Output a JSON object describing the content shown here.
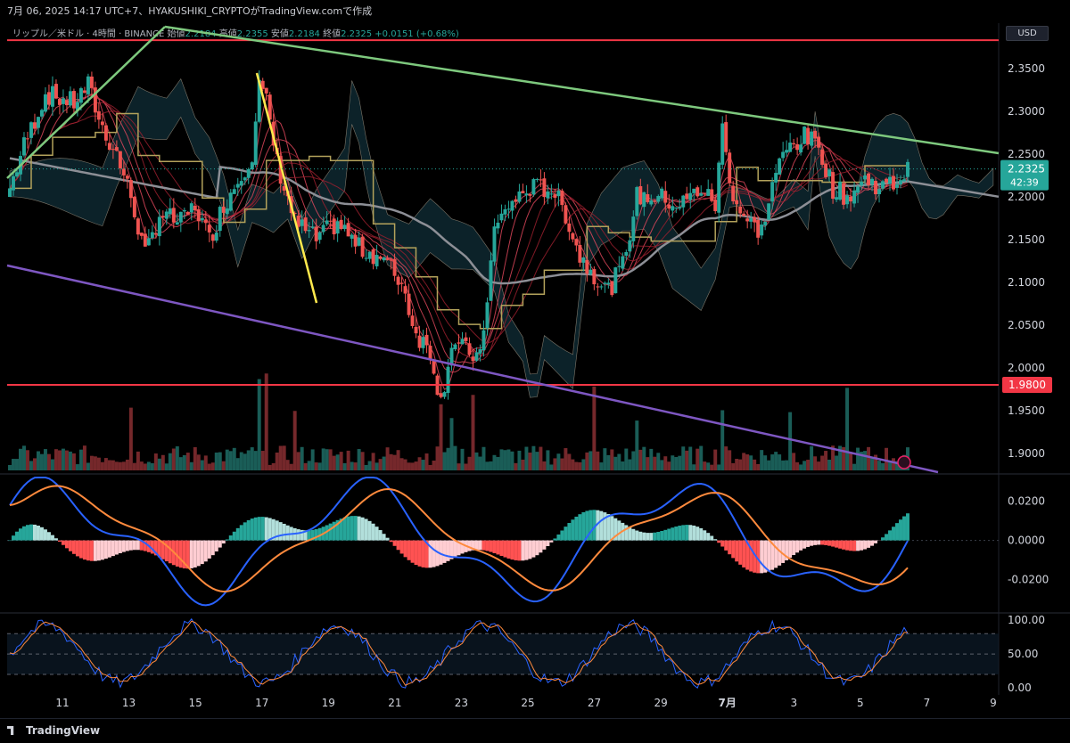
{
  "header": {
    "caption": "7月 06, 2025 14:17 UTC+7、HYAKUSHIKI_CRYPTOがTradingView.comで作成"
  },
  "legend": {
    "symbol": "リップル／米ドル · 4時間 · BINANCE",
    "open_label": "始値",
    "open": "2.2184",
    "high_label": "高値",
    "high": "2.2355",
    "low_label": "安値",
    "low": "2.2184",
    "close_label": "終値",
    "close": "2.2325",
    "change": "+0.0151 (+0.68%)"
  },
  "currency_button": "USD",
  "footer": {
    "brand": "TradingView"
  },
  "colors": {
    "up": "#26a69a",
    "down": "#ef5350",
    "cloud": "#0f2a33",
    "hline": "#f23645",
    "trend_green": "#7ec97e",
    "trend_purple": "#7e57c2",
    "trend_yellow": "#ffe94d",
    "macd": "#2962ff",
    "signal": "#ff8a3d"
  },
  "chart_data": [
    {
      "type": "candlestick",
      "pane": "price",
      "yaxis": {
        "ticks": [
          2.35,
          2.3,
          2.25,
          2.2,
          2.15,
          2.1,
          2.05,
          2.0,
          1.95,
          1.9
        ],
        "tick_labels": [
          "2.3500",
          "2.3000",
          "2.2500",
          "2.2000",
          "2.1500",
          "2.1000",
          "2.0500",
          "2.0000",
          "1.9500",
          "1.9000"
        ],
        "ylim": [
          1.88,
          2.38
        ]
      },
      "xaxis": {
        "tick_labels": [
          "11",
          "13",
          "15",
          "17",
          "19",
          "21",
          "23",
          "25",
          "27",
          "29",
          "7月",
          "3",
          "5",
          "7",
          "9"
        ]
      },
      "last_price": {
        "value": 2.2325,
        "label": "2.2325",
        "countdown": "42:39"
      },
      "horizontal_lines": [
        {
          "value": 2.383,
          "label": ""
        },
        {
          "value": 1.98,
          "label": "1.9800"
        }
      ],
      "indicators": [
        "ichimoku cloud",
        "moving average ribbon",
        "volume",
        "trendlines"
      ]
    },
    {
      "type": "macd",
      "pane": "macd",
      "yaxis": {
        "ticks": [
          0.02,
          0,
          -0.02
        ],
        "tick_labels": [
          "0.0200",
          "0.0000",
          "-0.0200"
        ],
        "ylim": [
          -0.036,
          0.032
        ]
      }
    },
    {
      "type": "stochastic_rsi",
      "pane": "stoch",
      "yaxis": {
        "ticks": [
          100,
          50,
          0
        ],
        "tick_labels": [
          "100.00",
          "50.00",
          "0.00"
        ],
        "ylim": [
          -5,
          108
        ]
      }
    }
  ]
}
